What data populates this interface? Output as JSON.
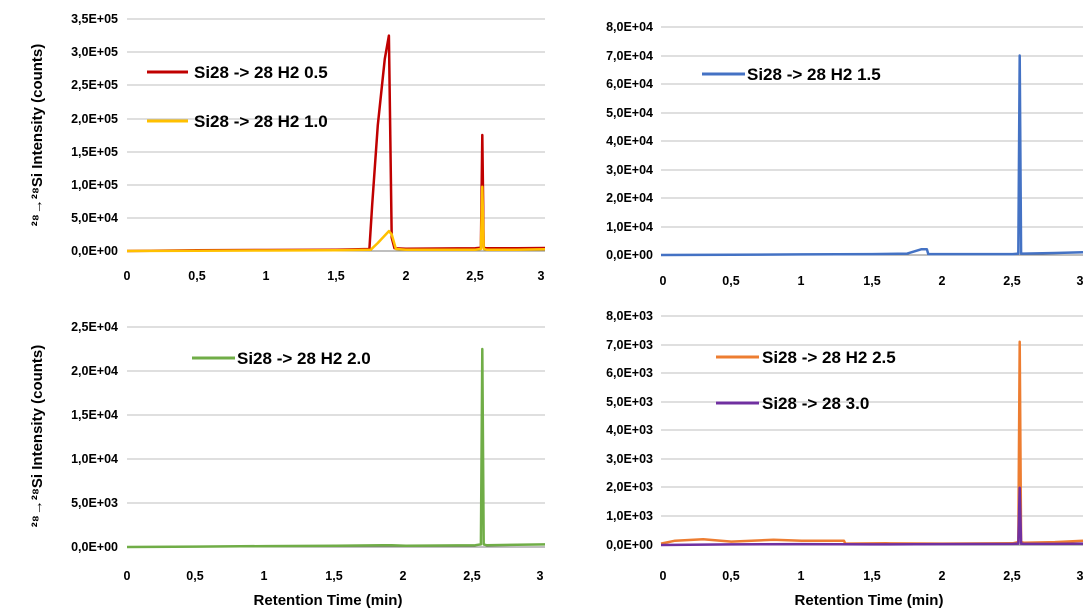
{
  "chart_data": [
    {
      "type": "line",
      "xlabel": "",
      "ylabel": "²⁸→²⁸Si Intensity (counts)",
      "xlim": [
        0,
        3
      ],
      "ylim": [
        0,
        350000
      ],
      "x_ticks": [
        "0",
        "0,5",
        "1",
        "1,5",
        "2",
        "2,5",
        "3"
      ],
      "y_ticks": [
        "0,0E+00",
        "5,0E+04",
        "1,0E+05",
        "1,5E+05",
        "2,0E+05",
        "2,5E+05",
        "3,0E+05",
        "3,5E+05"
      ],
      "legend_position": "top-left",
      "series": [
        {
          "name": "Si28 -> 28 H2 0.5",
          "color": "#c00000",
          "x": [
            0,
            0.5,
            1.0,
            1.5,
            1.74,
            1.76,
            1.8,
            1.85,
            1.88,
            1.9,
            1.92,
            2.0,
            2.5,
            2.54,
            2.55,
            2.56,
            2.58,
            2.8,
            3.0
          ],
          "y": [
            0,
            1000,
            1500,
            2000,
            3000,
            70000,
            190000,
            290000,
            325000,
            20000,
            4000,
            3500,
            4000,
            5000,
            175000,
            5000,
            4000,
            4000,
            4500
          ]
        },
        {
          "name": "Si28 -> 28 H2 1.0",
          "color": "#ffc000",
          "x": [
            0,
            0.5,
            1.0,
            1.5,
            1.75,
            1.8,
            1.88,
            1.9,
            1.93,
            2.0,
            2.5,
            2.54,
            2.55,
            2.56,
            2.58,
            2.8,
            3.0
          ],
          "y": [
            0,
            500,
            800,
            1200,
            2000,
            12000,
            30000,
            25000,
            3000,
            2000,
            2000,
            3000,
            97000,
            3000,
            2000,
            2000,
            2500
          ]
        }
      ]
    },
    {
      "type": "line",
      "xlabel": "",
      "ylabel": "",
      "xlim": [
        0,
        3
      ],
      "ylim": [
        0,
        80000
      ],
      "x_ticks": [
        "0",
        "0,5",
        "1",
        "1,5",
        "2",
        "2,5",
        "3"
      ],
      "y_ticks": [
        "0,0E+00",
        "1,0E+04",
        "2,0E+04",
        "3,0E+04",
        "4,0E+04",
        "5,0E+04",
        "6,0E+04",
        "7,0E+04",
        "8,0E+04"
      ],
      "legend_position": "top-left",
      "series": [
        {
          "name": "Si28 -> 28 H2 1.5",
          "color": "#4472c4",
          "x": [
            0,
            0.5,
            1.0,
            1.5,
            1.75,
            1.85,
            1.89,
            1.9,
            2.0,
            2.5,
            2.54,
            2.55,
            2.56,
            2.58,
            2.8,
            3.0
          ],
          "y": [
            0,
            100,
            200,
            300,
            500,
            2000,
            2000,
            300,
            300,
            300,
            500,
            70000,
            500,
            500,
            700,
            1000
          ]
        }
      ]
    },
    {
      "type": "line",
      "xlabel": "Retention Time (min)",
      "ylabel": "²⁸→²⁸Si Intensity (counts)",
      "xlim": [
        0,
        3
      ],
      "ylim": [
        0,
        25000
      ],
      "x_ticks": [
        "0",
        "0,5",
        "1",
        "1,5",
        "2",
        "2,5",
        "3"
      ],
      "y_ticks": [
        "0,0E+00",
        "5,0E+03",
        "1,0E+04",
        "1,5E+04",
        "2,0E+04",
        "2,5E+04"
      ],
      "legend_position": "top-center",
      "series": [
        {
          "name": "Si28 -> 28 H2 2.0",
          "color": "#70ad47",
          "x": [
            0,
            0.5,
            1.0,
            1.5,
            1.9,
            2.0,
            2.5,
            2.54,
            2.55,
            2.56,
            2.58,
            2.8,
            3.0
          ],
          "y": [
            0,
            50,
            100,
            150,
            200,
            150,
            200,
            300,
            22500,
            300,
            200,
            250,
            300
          ]
        }
      ]
    },
    {
      "type": "line",
      "xlabel": "Retention Time (min)",
      "ylabel": "",
      "xlim": [
        0,
        3
      ],
      "ylim": [
        0,
        8000
      ],
      "x_ticks": [
        "0",
        "0,5",
        "1",
        "1,5",
        "2",
        "2,5",
        "3"
      ],
      "y_ticks": [
        "0,0E+00",
        "1,0E+03",
        "2,0E+03",
        "3,0E+03",
        "4,0E+03",
        "5,0E+03",
        "6,0E+03",
        "7,0E+03",
        "8,0E+03"
      ],
      "legend_position": "top-left",
      "series": [
        {
          "name": "Si28 -> 28 H2 2.5",
          "color": "#ed7d31",
          "x": [
            0,
            0.1,
            0.3,
            0.5,
            0.8,
            1.0,
            1.3,
            1.31,
            1.6,
            2.0,
            2.5,
            2.54,
            2.55,
            2.56,
            2.58,
            2.8,
            3.0
          ],
          "y": [
            50,
            150,
            200,
            120,
            180,
            150,
            150,
            50,
            60,
            50,
            60,
            100,
            7100,
            100,
            80,
            100,
            150
          ]
        },
        {
          "name": "Si28 -> 28 3.0",
          "color": "#7030a0",
          "x": [
            0,
            0.5,
            1.0,
            1.5,
            2.0,
            2.5,
            2.54,
            2.55,
            2.56,
            2.58,
            2.8,
            3.0
          ],
          "y": [
            0,
            20,
            30,
            20,
            30,
            40,
            50,
            2000,
            50,
            40,
            40,
            50
          ]
        }
      ]
    }
  ]
}
